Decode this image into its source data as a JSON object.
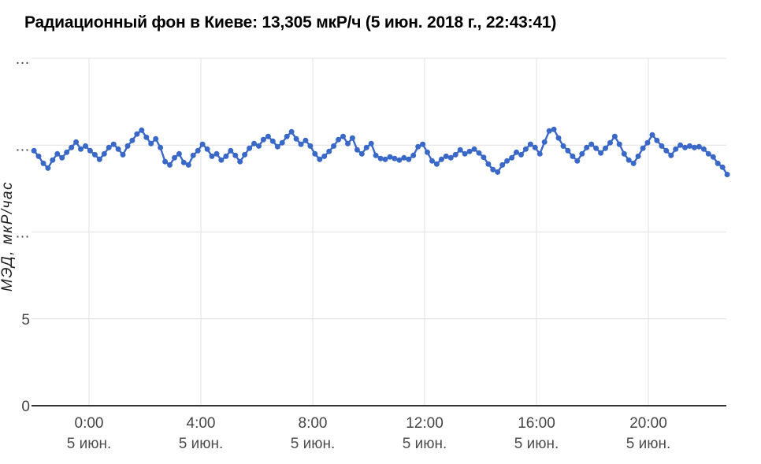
{
  "header": {
    "title": "Радиационный фон в Киеве: 13,305 мкР/ч (5 июн. 2018 г., 22:43:41)"
  },
  "colors": {
    "background": "#ffffff",
    "grid": "#e0e0e0",
    "axis_line": "#333333",
    "tick_label": "#454545",
    "date_label": "#4d4d4d",
    "axis_title": "#1c1c1c",
    "title": "#000000",
    "series": "#3a68c7"
  },
  "chart_data": {
    "type": "line",
    "title": "Радиационный фон в Киеве: 13,305 мкР/ч (5 июн. 2018 г., 22:43:41)",
    "xlabel": "",
    "ylabel": "МЭД, мкР/час",
    "unit": "мкР/ч",
    "current_value": "13,305",
    "current_timestamp": "5 июн. 2018 г., 22:43:41",
    "ylim": [
      0,
      20
    ],
    "grid": true,
    "legend": "none",
    "marker": "circle",
    "y_ticks": [
      {
        "value": 0,
        "label": "0"
      },
      {
        "value": 5,
        "label": "5"
      },
      {
        "value": 10,
        "label": "…"
      },
      {
        "value": 15,
        "label": "…"
      },
      {
        "value": 20,
        "label": "…"
      }
    ],
    "x_ticks": [
      {
        "hour": 0,
        "time_label": "0:00",
        "date_label": "5 июн."
      },
      {
        "hour": 4,
        "time_label": "4:00",
        "date_label": "5 июн."
      },
      {
        "hour": 8,
        "time_label": "8:00",
        "date_label": "5 июн."
      },
      {
        "hour": 12,
        "time_label": "12:00",
        "date_label": "5 июн."
      },
      {
        "hour": 16,
        "time_label": "16:00",
        "date_label": "5 июн."
      },
      {
        "hour": 20,
        "time_label": "20:00",
        "date_label": "5 июн."
      }
    ],
    "x_axis_hours_range": [
      -1.97,
      22.82
    ],
    "series": [
      {
        "name": "МЭД, мкР/час",
        "color": "#3a68c7",
        "values": [
          14.68,
          14.36,
          13.95,
          13.68,
          14.14,
          14.5,
          14.27,
          14.59,
          14.86,
          15.18,
          14.77,
          14.95,
          14.68,
          14.45,
          14.18,
          14.5,
          14.86,
          15.05,
          14.77,
          14.45,
          14.95,
          15.27,
          15.64,
          15.86,
          15.45,
          15.09,
          15.36,
          14.86,
          14.05,
          13.86,
          14.27,
          14.5,
          14.0,
          13.86,
          14.41,
          14.68,
          15.05,
          14.77,
          14.36,
          14.5,
          14.14,
          14.36,
          14.68,
          14.41,
          14.05,
          14.45,
          14.82,
          15.09,
          14.95,
          15.32,
          15.5,
          15.23,
          14.91,
          15.14,
          15.5,
          15.77,
          15.36,
          15.05,
          15.27,
          14.95,
          14.5,
          14.18,
          14.36,
          14.64,
          14.95,
          15.32,
          15.5,
          15.09,
          15.41,
          14.73,
          14.5,
          14.86,
          15.09,
          14.41,
          14.23,
          14.18,
          14.32,
          14.23,
          14.14,
          14.27,
          14.18,
          14.41,
          14.91,
          15.05,
          14.59,
          14.09,
          13.91,
          14.18,
          14.36,
          14.27,
          14.45,
          14.73,
          14.5,
          14.64,
          14.77,
          14.55,
          14.3,
          13.91,
          13.59,
          13.45,
          13.86,
          14.09,
          14.27,
          14.59,
          14.45,
          14.77,
          15.05,
          14.86,
          14.5,
          15.18,
          15.82,
          15.91,
          15.41,
          14.95,
          14.68,
          14.36,
          14.09,
          14.5,
          14.86,
          15.05,
          14.82,
          14.55,
          14.82,
          15.14,
          15.5,
          15.05,
          14.5,
          14.14,
          13.95,
          14.36,
          14.82,
          15.14,
          15.59,
          15.27,
          14.95,
          14.68,
          14.41,
          14.77,
          15.0,
          14.86,
          14.95,
          14.86,
          14.91,
          14.77,
          14.5,
          14.32,
          13.95,
          13.73,
          13.31
        ]
      }
    ]
  }
}
